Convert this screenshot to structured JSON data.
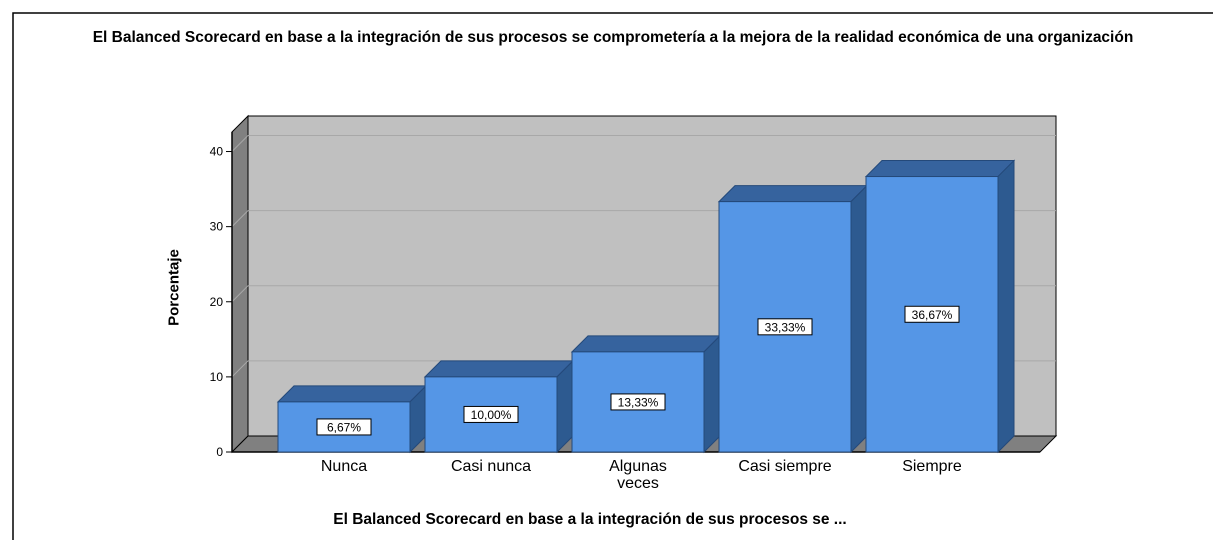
{
  "chart_data": {
    "type": "bar3d",
    "title": "El Balanced Scorecard en base a la integración de sus procesos se comprometería a la mejora de la realidad económica de una organización",
    "x_label": "El Balanced Scorecard en base a la integración de sus procesos se ...",
    "y_label": "Porcentaje",
    "categories": [
      "Nunca",
      "Casi nunca",
      "Algunas veces",
      "Casi siempre",
      "Siempre"
    ],
    "values": [
      6.67,
      10.0,
      13.33,
      33.33,
      36.67
    ],
    "value_labels": [
      "6,67%",
      "10,00%",
      "13,33%",
      "33,33%",
      "36,67%"
    ],
    "color": "#5596e6",
    "ylim": [
      0,
      42.6
    ],
    "yticks": [
      0,
      10,
      20,
      30,
      40
    ],
    "grid": true
  }
}
